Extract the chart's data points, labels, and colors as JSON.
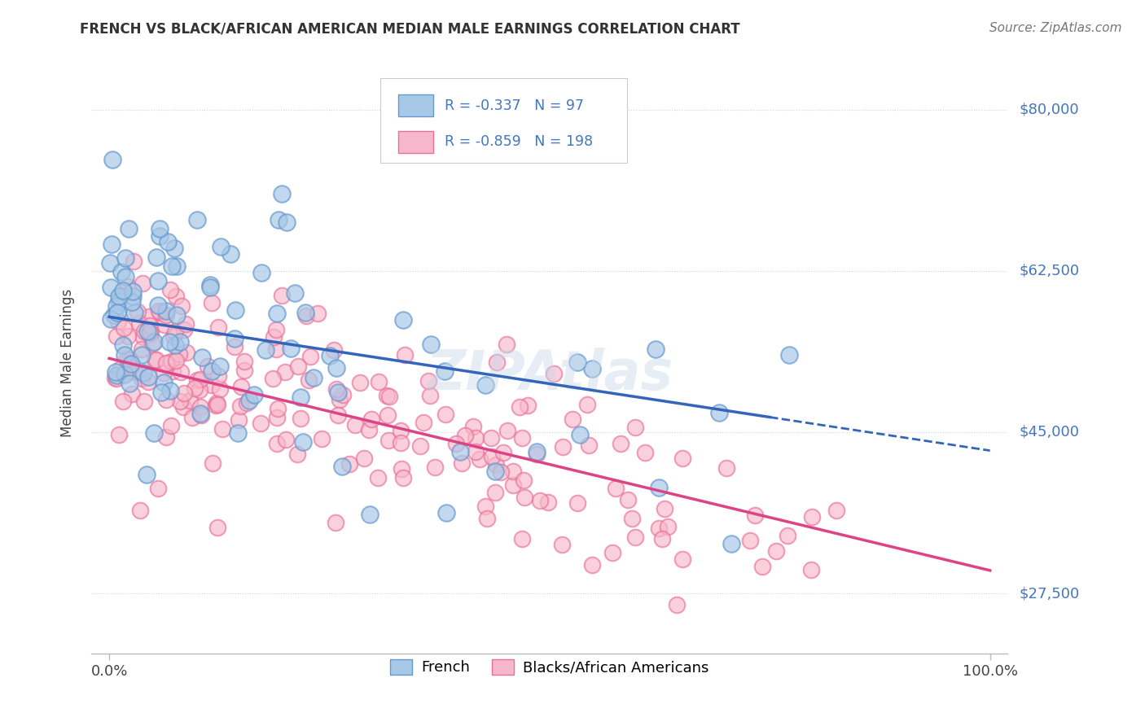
{
  "title": "FRENCH VS BLACK/AFRICAN AMERICAN MEDIAN MALE EARNINGS CORRELATION CHART",
  "source": "Source: ZipAtlas.com",
  "ylabel": "Median Male Earnings",
  "xlabel": "",
  "xlim": [
    -2.0,
    102.0
  ],
  "ylim": [
    21000,
    84000
  ],
  "yticks": [
    27500,
    45000,
    62500,
    80000
  ],
  "ytick_labels": [
    "$27,500",
    "$45,000",
    "$62,500",
    "$80,000"
  ],
  "xticks": [
    0.0,
    100.0
  ],
  "xtick_labels": [
    "0.0%",
    "100.0%"
  ],
  "blue_R": -0.337,
  "blue_N": 97,
  "pink_R": -0.859,
  "pink_N": 198,
  "blue_color": "#a8c8e8",
  "blue_edge_color": "#6699cc",
  "pink_color": "#f8b8cc",
  "pink_edge_color": "#e87099",
  "blue_line_color": "#3366bb",
  "pink_line_color": "#dd4488",
  "legend_label_blue": "French",
  "legend_label_pink": "Blacks/African Americans",
  "background_color": "#ffffff",
  "grid_color": "#c0d0e0",
  "title_color": "#333333",
  "axis_label_color": "#4477bb",
  "source_color": "#777777",
  "blue_intercept": 57500,
  "blue_slope": -145,
  "pink_intercept": 53000,
  "pink_slope": -230,
  "watermark": "ZIPAtlas"
}
